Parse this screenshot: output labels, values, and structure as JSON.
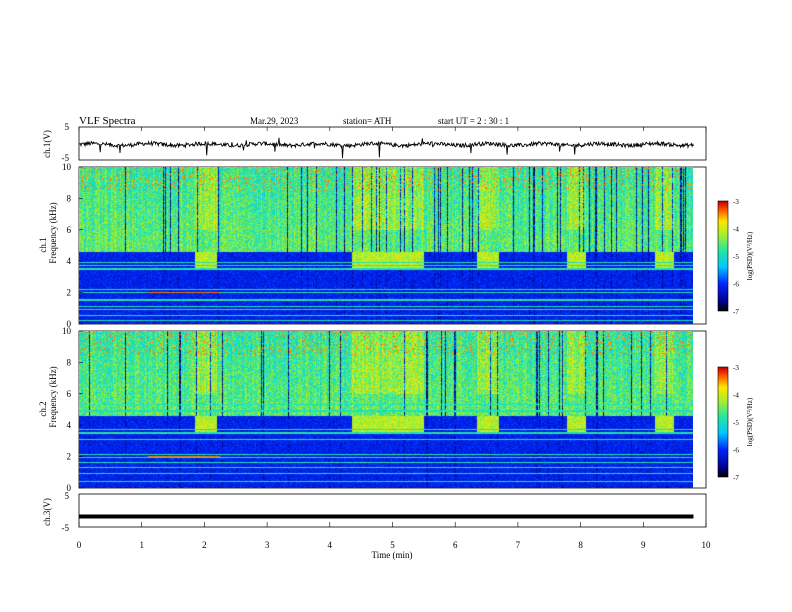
{
  "header": {
    "title": "VLF  Spectra",
    "date": "Mar.29, 2023",
    "station": "station= ATH",
    "start_ut": "start  UT  =    2  : 30 : 1"
  },
  "chart_data": [
    {
      "type": "line",
      "panel": "ch1-waveform",
      "ylabel": "ch.1(V)",
      "ylim": [
        -5,
        5
      ],
      "yticks": [
        "5",
        "-5"
      ],
      "xlim": [
        0,
        9.8
      ],
      "baseline": -0.3,
      "noise_amplitude": 0.6,
      "spike_range": [
        -4.5,
        2
      ]
    },
    {
      "type": "heatmap",
      "panel": "ch1-spectrogram",
      "ylabel_channel": "ch.1",
      "ylabel": "Frequency  (kHz)",
      "ylim": [
        0,
        10
      ],
      "yticks": [
        "0",
        "2",
        "4",
        "6",
        "8",
        "10"
      ],
      "xlim": [
        0,
        9.8
      ],
      "colorbar": {
        "label": "log(PSD)(V²/Hz)",
        "ticks": [
          "-3",
          "-4",
          "-5",
          "-6",
          "-7"
        ],
        "range": [
          -7,
          -3
        ]
      },
      "emission_bursts_min": [
        [
          1.85,
          2.2
        ],
        [
          4.35,
          5.5
        ],
        [
          6.35,
          6.7
        ],
        [
          7.8,
          8.1
        ],
        [
          9.2,
          9.5
        ]
      ],
      "burst_band_khz": [
        3.4,
        4.6
      ],
      "horizontal_lines_khz": [
        0.2,
        0.5,
        0.9,
        1.1,
        1.5,
        2.0,
        2.2,
        3.5,
        3.7,
        3.9
      ],
      "high_activity_band_khz": [
        4.6,
        10
      ]
    },
    {
      "type": "heatmap",
      "panel": "ch2-spectrogram",
      "ylabel_channel": "ch.2",
      "ylabel": "Frequency  (kHz)",
      "ylim": [
        0,
        10
      ],
      "yticks": [
        "0",
        "2",
        "4",
        "6",
        "8",
        "10"
      ],
      "xlim": [
        0,
        9.8
      ],
      "colorbar": {
        "label": "log(PSD)(V²/Hz)",
        "ticks": [
          "-3",
          "-4",
          "-5",
          "-6",
          "-7"
        ],
        "range": [
          -7,
          -3
        ]
      },
      "emission_bursts_min": [
        [
          1.85,
          2.2
        ],
        [
          4.35,
          5.5
        ],
        [
          6.35,
          6.7
        ],
        [
          7.8,
          8.1
        ],
        [
          9.2,
          9.5
        ]
      ],
      "burst_band_khz": [
        3.4,
        4.6
      ],
      "horizontal_lines_khz": [
        0.4,
        0.9,
        1.3,
        1.6,
        1.9,
        2.1,
        3.1,
        3.5,
        3.7,
        4.9,
        5.3
      ],
      "high_activity_band_khz": [
        4.6,
        10
      ]
    },
    {
      "type": "line",
      "panel": "ch3-waveform",
      "ylabel": "ch.3(V)",
      "ylim": [
        -5,
        5
      ],
      "yticks": [
        "5",
        "-5"
      ],
      "xlim": [
        0,
        9.8
      ],
      "values_constant": -1.8,
      "xlabel": "Time  (min)",
      "xticks": [
        "0",
        "1",
        "2",
        "3",
        "4",
        "5",
        "6",
        "7",
        "8",
        "9",
        "10"
      ],
      "x_axis_max": 10
    }
  ]
}
